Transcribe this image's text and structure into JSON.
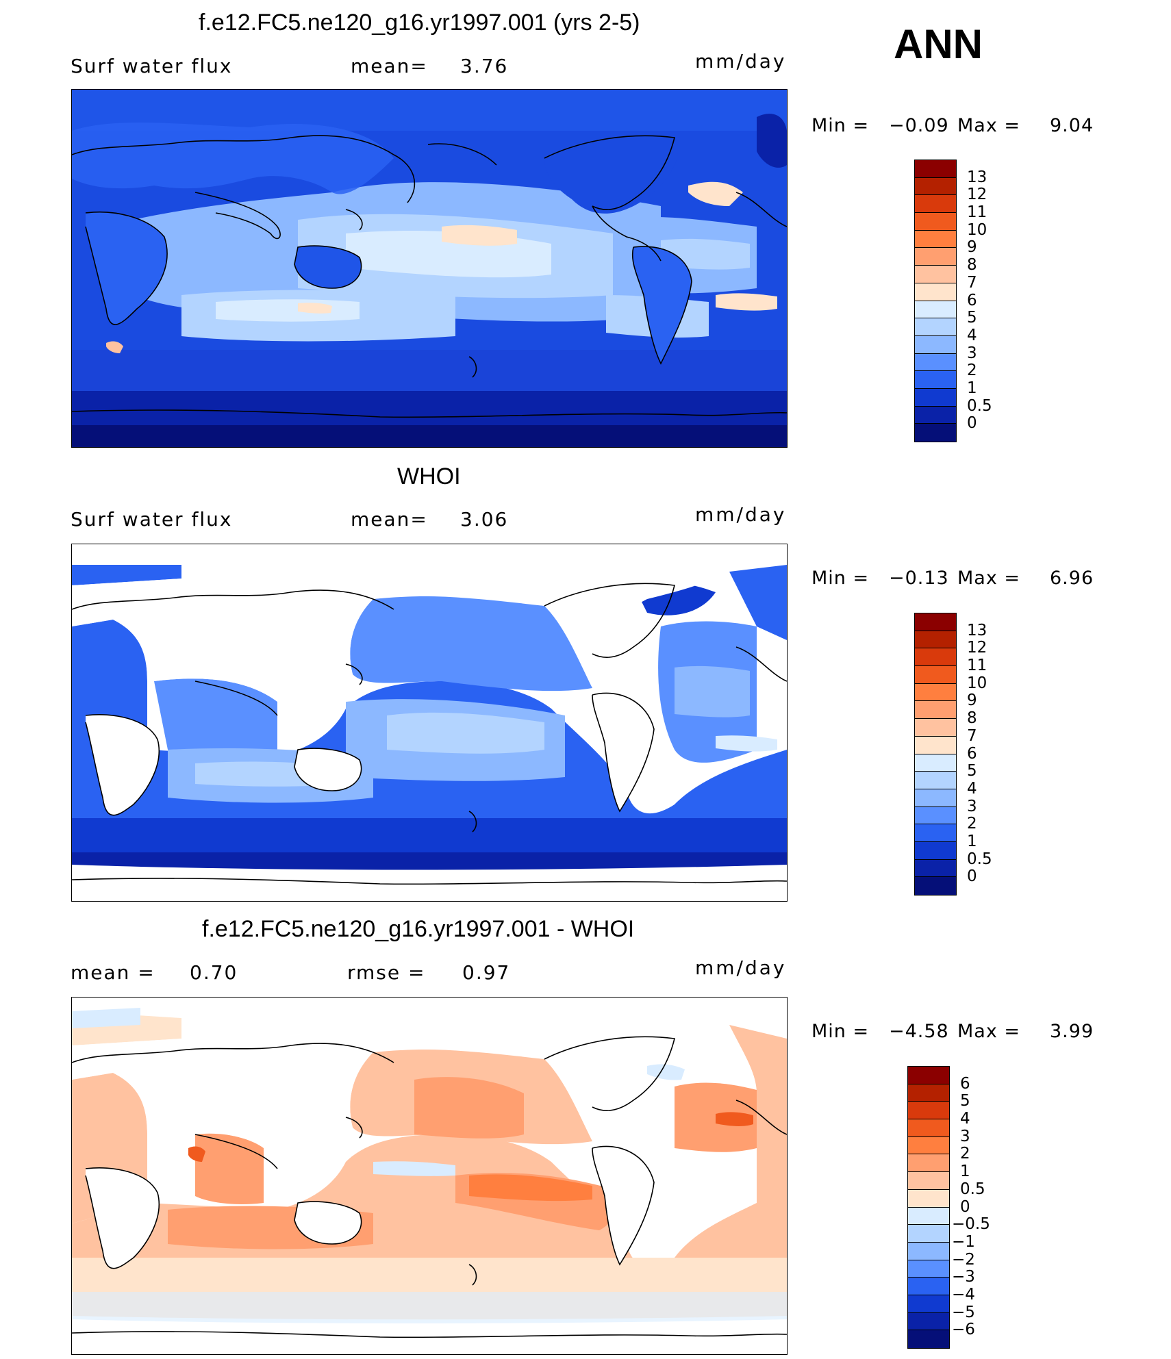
{
  "season": "ANN",
  "panels": [
    {
      "title": "f.e12.FC5.ne120_g16.yr1997.001 (yrs 2-5)",
      "left_label": "Surf water flux",
      "stat1_label": "mean=",
      "stat1_value": "3.76",
      "stat2_label": "",
      "stat2_value": "",
      "units": "mm/day",
      "min_label": "Min =",
      "min_value": "−0.09",
      "max_label": "Max =",
      "max_value": "9.04",
      "colorbar_ticks": [
        "13",
        "12",
        "11",
        "10",
        "9",
        "8",
        "7",
        "6",
        "5",
        "4",
        "3",
        "2",
        "1",
        "0.5",
        "0"
      ],
      "colorbar_colors": [
        "#8b0000",
        "#b42100",
        "#d93a0c",
        "#f05a1e",
        "#ff7f3f",
        "#ff9f70",
        "#ffc2a0",
        "#ffe4cc",
        "#d9ecff",
        "#b3d4ff",
        "#8cb8ff",
        "#5a90ff",
        "#2a62f2",
        "#103ad0",
        "#0a22a8",
        "#050f78"
      ]
    },
    {
      "title": "WHOI",
      "left_label": "Surf water flux",
      "stat1_label": "mean=",
      "stat1_value": "3.06",
      "stat2_label": "",
      "stat2_value": "",
      "units": "mm/day",
      "min_label": "Min =",
      "min_value": "−0.13",
      "max_label": "Max =",
      "max_value": "6.96",
      "colorbar_ticks": [
        "13",
        "12",
        "11",
        "10",
        "9",
        "8",
        "7",
        "6",
        "5",
        "4",
        "3",
        "2",
        "1",
        "0.5",
        "0"
      ],
      "colorbar_colors": [
        "#8b0000",
        "#b42100",
        "#d93a0c",
        "#f05a1e",
        "#ff7f3f",
        "#ff9f70",
        "#ffc2a0",
        "#ffe4cc",
        "#d9ecff",
        "#b3d4ff",
        "#8cb8ff",
        "#5a90ff",
        "#2a62f2",
        "#103ad0",
        "#0a22a8",
        "#050f78"
      ]
    },
    {
      "title": "f.e12.FC5.ne120_g16.yr1997.001 - WHOI",
      "left_label": "",
      "stat1_label": "mean =",
      "stat1_value": "0.70",
      "stat2_label": "rmse =",
      "stat2_value": "0.97",
      "units": "mm/day",
      "min_label": "Min =",
      "min_value": "−4.58",
      "max_label": "Max =",
      "max_value": "3.99",
      "colorbar_ticks": [
        "6",
        "5",
        "4",
        "3",
        "2",
        "1",
        "0.5",
        "0",
        "−0.5",
        "−1",
        "−2",
        "−3",
        "−4",
        "−5",
        "−6"
      ],
      "colorbar_colors": [
        "#8b0000",
        "#b42100",
        "#d93a0c",
        "#f05a1e",
        "#ff7f3f",
        "#ff9f70",
        "#ffc2a0",
        "#ffe4cc",
        "#d9ecff",
        "#b3d4ff",
        "#8cb8ff",
        "#5a90ff",
        "#2a62f2",
        "#103ad0",
        "#0a22a8",
        "#050f78"
      ]
    }
  ],
  "map_colors": {
    "ocean_deep": "#0a22a8",
    "ocean_mid": "#2a62f2",
    "ocean_light": "#8cb8ff",
    "ocean_pale": "#d9ecff",
    "warm_pale": "#ffe4cc",
    "warm_light": "#ffc2a0",
    "warm_mid": "#ff9f70",
    "land_model": "#1a4be0",
    "land_obs": "#ffffff"
  }
}
